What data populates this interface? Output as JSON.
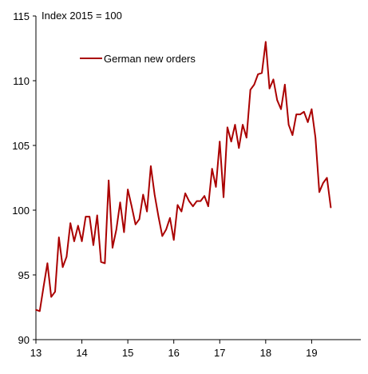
{
  "chart_data": {
    "type": "line",
    "unit_label": "Index 2015 = 100",
    "legend_position": "top-left",
    "grid": false,
    "colors": {
      "series": "#aa0000",
      "axis": "#000000"
    },
    "x_ticks": [
      "13",
      "14",
      "15",
      "16",
      "17",
      "18",
      "19"
    ],
    "x_tick_values": [
      2013,
      2014,
      2015,
      2016,
      2017,
      2018,
      2019
    ],
    "xlim": [
      2013,
      2020.07
    ],
    "ylim": [
      90,
      115
    ],
    "y_ticks": [
      90,
      95,
      100,
      105,
      110,
      115
    ],
    "y_tick_labels": [
      "90",
      "95",
      "100",
      "105",
      "110",
      "115"
    ],
    "series": [
      {
        "name": "German new orders",
        "x": [
          2013.0,
          2013.083,
          2013.167,
          2013.25,
          2013.333,
          2013.417,
          2013.5,
          2013.583,
          2013.667,
          2013.75,
          2013.833,
          2013.917,
          2014.0,
          2014.083,
          2014.167,
          2014.25,
          2014.333,
          2014.417,
          2014.5,
          2014.583,
          2014.667,
          2014.75,
          2014.833,
          2014.917,
          2015.0,
          2015.083,
          2015.167,
          2015.25,
          2015.333,
          2015.417,
          2015.5,
          2015.583,
          2015.667,
          2015.75,
          2015.833,
          2015.917,
          2016.0,
          2016.083,
          2016.167,
          2016.25,
          2016.333,
          2016.417,
          2016.5,
          2016.583,
          2016.667,
          2016.75,
          2016.833,
          2016.917,
          2017.0,
          2017.083,
          2017.167,
          2017.25,
          2017.333,
          2017.417,
          2017.5,
          2017.583,
          2017.667,
          2017.75,
          2017.833,
          2017.917,
          2018.0,
          2018.083,
          2018.167,
          2018.25,
          2018.333,
          2018.417,
          2018.5,
          2018.583,
          2018.667,
          2018.75,
          2018.833,
          2018.917,
          2019.0,
          2019.083,
          2019.167,
          2019.25,
          2019.333,
          2019.417
        ],
        "values": [
          92.3,
          92.2,
          94.1,
          95.9,
          93.3,
          93.7,
          97.9,
          95.6,
          96.4,
          99.0,
          97.6,
          98.8,
          97.6,
          99.5,
          99.5,
          97.3,
          99.6,
          96.0,
          95.9,
          102.3,
          97.1,
          98.5,
          100.6,
          98.3,
          101.6,
          100.3,
          98.9,
          99.3,
          101.2,
          99.9,
          103.4,
          101.2,
          99.5,
          98.0,
          98.5,
          99.4,
          97.7,
          100.4,
          99.9,
          101.3,
          100.7,
          100.3,
          100.7,
          100.7,
          101.1,
          100.3,
          103.2,
          101.8,
          105.3,
          101.0,
          106.4,
          105.3,
          106.6,
          104.8,
          106.6,
          105.6,
          109.3,
          109.7,
          110.5,
          110.6,
          113.0,
          109.4,
          110.1,
          108.5,
          107.8,
          109.7,
          106.6,
          105.8,
          107.4,
          107.4,
          107.6,
          106.8,
          107.8,
          105.6,
          101.4,
          102.1,
          102.5,
          100.2
        ]
      }
    ]
  }
}
